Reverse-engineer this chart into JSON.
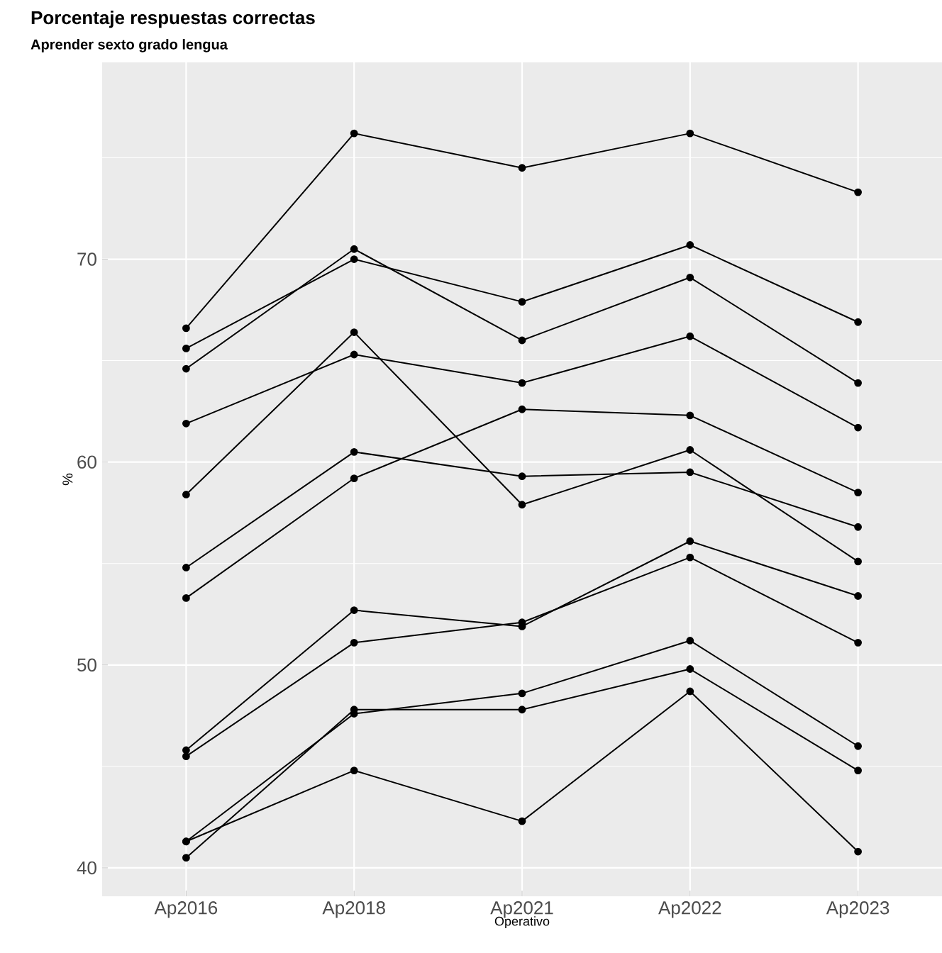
{
  "chart_data": {
    "type": "line",
    "title": "Porcentaje respuestas correctas",
    "subtitle": "Aprender sexto grado lengua",
    "xlabel": "Operativo",
    "ylabel": "%",
    "categories": [
      "Ap2016",
      "Ap2018",
      "Ap2021",
      "Ap2022",
      "Ap2023"
    ],
    "series": [
      {
        "color": "#000000",
        "values": [
          66.6,
          76.2,
          74.5,
          76.2,
          73.3
        ]
      },
      {
        "color": "#000000",
        "values": [
          65.6,
          70.0,
          67.9,
          70.7,
          66.9
        ]
      },
      {
        "color": "#000000",
        "values": [
          64.6,
          70.5,
          66.0,
          69.1,
          63.9
        ]
      },
      {
        "color": "#000000",
        "values": [
          61.9,
          65.3,
          63.9,
          66.2,
          61.7
        ]
      },
      {
        "color": "#000000",
        "values": [
          58.4,
          66.4,
          57.9,
          60.6,
          55.1
        ]
      },
      {
        "color": "#000000",
        "values": [
          54.8,
          60.5,
          59.3,
          59.5,
          56.8
        ]
      },
      {
        "color": "#000000",
        "values": [
          53.3,
          59.2,
          62.6,
          62.3,
          58.5
        ]
      },
      {
        "color": "#000000",
        "values": [
          45.8,
          52.7,
          51.9,
          56.1,
          53.4
        ]
      },
      {
        "color": "#000000",
        "values": [
          45.5,
          51.1,
          52.1,
          55.3,
          51.1
        ]
      },
      {
        "color": "#000000",
        "values": [
          41.3,
          47.6,
          48.6,
          51.2,
          46.0
        ]
      },
      {
        "color": "#000000",
        "values": [
          40.5,
          47.8,
          47.8,
          49.8,
          44.8
        ]
      },
      {
        "color": "#000000",
        "values": [
          41.3,
          44.8,
          42.3,
          48.7,
          40.8
        ]
      }
    ],
    "ylim": [
      38.6,
      79.7
    ],
    "yticks": [
      40,
      50,
      60,
      70
    ],
    "grid": true,
    "marker": "circle",
    "line_style": "solid"
  }
}
